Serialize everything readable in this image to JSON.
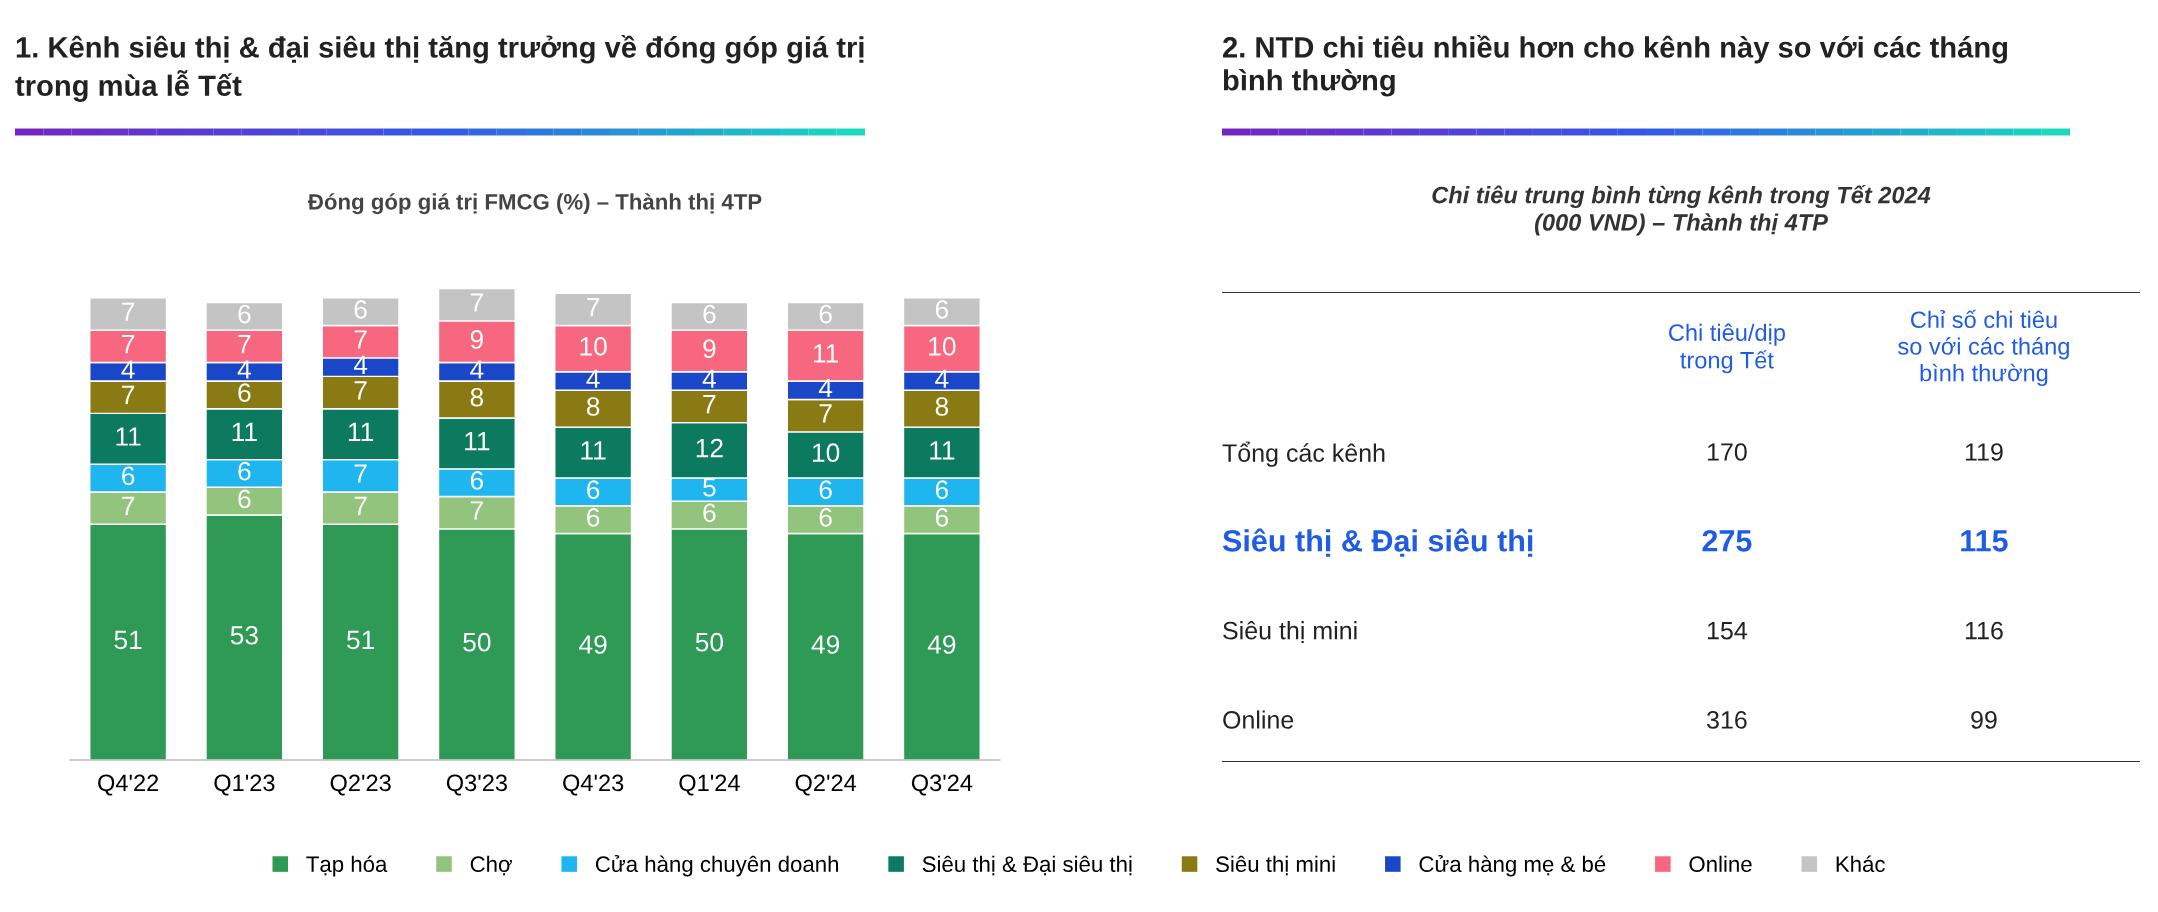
{
  "chart_data": [
    {
      "type": "bar",
      "stacked": true,
      "data_labels": true,
      "legend": "bottom",
      "grid": false,
      "title": "1. Kênh siêu thị & đại siêu thị tăng trưởng về đóng góp giá trị\ntrong mùa lễ Tết",
      "subtitle": "Đóng góp giá trị FMCG (%) – Thành thị 4TP",
      "categories": [
        "Q4'22",
        "Q1'23",
        "Q2'23",
        "Q3'23",
        "Q4'23",
        "Q1'24",
        "Q2'24",
        "Q3'24"
      ],
      "series": [
        {
          "name": "Tạp hóa",
          "color": "#2e9a55",
          "values": [
            51,
            53,
            51,
            50,
            49,
            50,
            49,
            49
          ]
        },
        {
          "name": "Chợ",
          "color": "#93c47d",
          "values": [
            7,
            6,
            7,
            7,
            6,
            6,
            6,
            6
          ]
        },
        {
          "name": "Cửa hàng chuyên doanh",
          "color": "#1fb5ef",
          "values": [
            6,
            6,
            7,
            6,
            6,
            5,
            6,
            6
          ]
        },
        {
          "name": "Siêu thị & Đại siêu thị",
          "color": "#0b7a5e",
          "values": [
            11,
            11,
            11,
            11,
            11,
            12,
            10,
            11
          ]
        },
        {
          "name": "Siêu thị mini",
          "color": "#8a7a14",
          "values": [
            7,
            6,
            7,
            8,
            8,
            7,
            7,
            8
          ]
        },
        {
          "name": "Cửa hàng mẹ & bé",
          "color": "#1a47c8",
          "values": [
            4,
            4,
            4,
            4,
            4,
            4,
            4,
            4
          ]
        },
        {
          "name": "Online",
          "color": "#f7677f",
          "values": [
            7,
            7,
            7,
            9,
            10,
            9,
            11,
            10
          ]
        },
        {
          "name": "Khác",
          "color": "#c4c4c4",
          "values": [
            7,
            6,
            6,
            7,
            7,
            6,
            6,
            6
          ]
        }
      ]
    },
    {
      "type": "other",
      "data_labels": true,
      "title": "2. NTD chi tiêu nhiều hơn cho kênh này so với các tháng\nbình thường",
      "subtitle": "Chi tiêu trung bình từng kênh trong Tết 2024\n(000 VND) – Thành thị 4TP",
      "categories": [
        "Tổng các kênh",
        "Siêu thị & Đại siêu thị",
        "Siêu thị mini",
        "Online"
      ],
      "colors": [
        "#222222",
        "#1f5ce6",
        "#222222",
        "#222222"
      ],
      "series": [
        {
          "name": "Chi tiêu/dịp\ntrong Tết",
          "color": "#1f5ce6",
          "values": [
            170,
            275,
            154,
            316
          ]
        },
        {
          "name": "Chỉ số chi tiêu\nso với các tháng\nbình thường",
          "color": "#1f5ce6",
          "values": [
            119,
            115,
            116,
            99
          ]
        }
      ]
    }
  ]
}
